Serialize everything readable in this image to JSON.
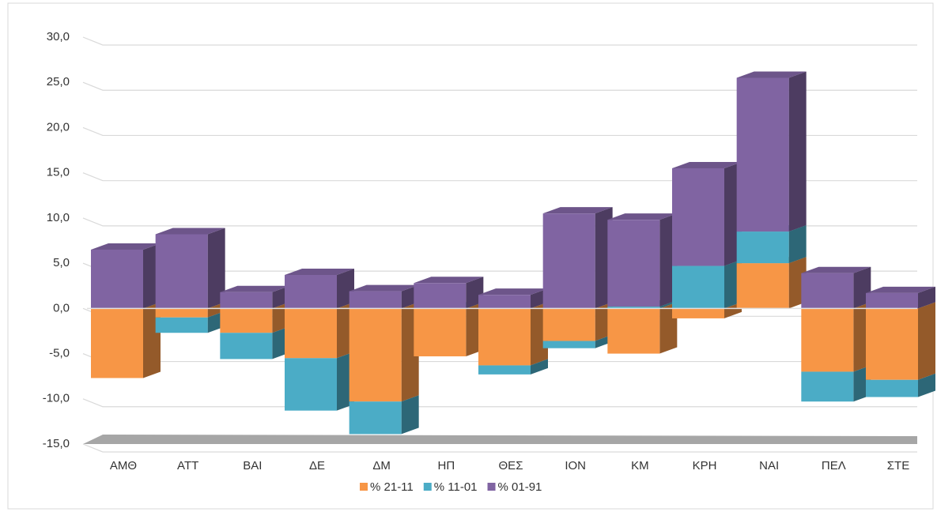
{
  "chart_data": {
    "type": "bar",
    "stacked": true,
    "categories": [
      "ΑΜΘ",
      "ΑΤΤ",
      "ΒΑΙ",
      "ΔΕ",
      "ΔΜ",
      "ΗΠ",
      "ΘΕΣ",
      "ΙΟΝ",
      "ΚΜ",
      "ΚΡΗ",
      "ΝΑΙ",
      "ΠΕΛ",
      "ΣΤΕ"
    ],
    "series": [
      {
        "name": "% 21-11",
        "color": "#f79646",
        "values": [
          -7.7,
          -1.0,
          -2.7,
          -5.5,
          -10.3,
          -5.3,
          -6.3,
          -3.6,
          -5.0,
          -1.1,
          5.0,
          -7.0,
          -7.9
        ]
      },
      {
        "name": "% 11-01",
        "color": "#4bacc6",
        "values": [
          0,
          -1.7,
          -2.9,
          -5.8,
          -3.6,
          0,
          -1.0,
          -0.8,
          0.2,
          4.7,
          3.5,
          -3.3,
          -1.9
        ]
      },
      {
        "name": "% 01-91",
        "color": "#8064a2",
        "values": [
          6.5,
          8.2,
          1.8,
          3.7,
          1.9,
          2.8,
          1.5,
          10.5,
          9.6,
          10.8,
          17.0,
          3.9,
          1.7
        ]
      }
    ],
    "ylim": [
      -15,
      30
    ],
    "yticks": [
      {
        "value": -15,
        "label": "-15,0"
      },
      {
        "value": -10,
        "label": "-10,0"
      },
      {
        "value": -5,
        "label": "-5,0"
      },
      {
        "value": 0,
        "label": "0,0"
      },
      {
        "value": 5,
        "label": "5,0"
      },
      {
        "value": 10,
        "label": "10,0"
      },
      {
        "value": 15,
        "label": "15,0"
      },
      {
        "value": 20,
        "label": "20,0"
      },
      {
        "value": 25,
        "label": "25,0"
      },
      {
        "value": 30,
        "label": "30,0"
      }
    ],
    "grid": true,
    "legend": "bottom"
  }
}
